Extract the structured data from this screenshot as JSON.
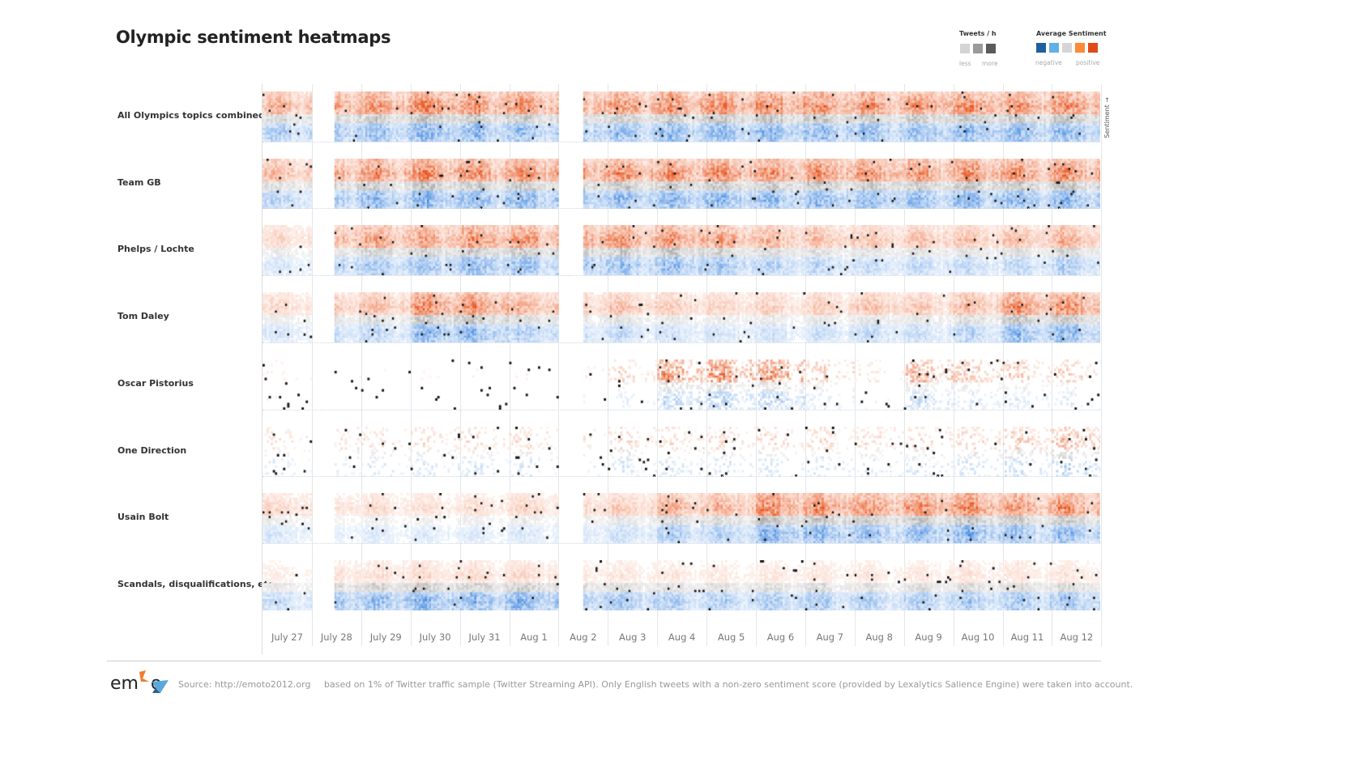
{
  "title": "Olympic sentiment heatmaps",
  "legend": {
    "tweets": {
      "title": "Tweets / h",
      "less": "less",
      "more": "more",
      "colors": [
        "#d4d4d4",
        "#9a9a9a",
        "#5a5a5a"
      ]
    },
    "sentiment": {
      "title": "Average Sentiment",
      "negative": "negative",
      "positive": "positive",
      "colors": [
        "#1f5fa0",
        "#63b0e2",
        "#d6d6d6",
        "#fc8a36",
        "#e04a16"
      ]
    }
  },
  "axis": {
    "y_label": "Sentiment →"
  },
  "chart_data": {
    "type": "heatmap",
    "x_categories": [
      "July 27",
      "July 28",
      "July 29",
      "July 30",
      "July 31",
      "Aug 1",
      "Aug 2",
      "Aug 3",
      "Aug 4",
      "Aug 5",
      "Aug 6",
      "Aug 7",
      "Aug 8",
      "Aug 9",
      "Aug 10",
      "Aug 11",
      "Aug 12"
    ],
    "x_resolution": "hourly",
    "y": "sentiment (positive at top, negative at bottom)",
    "color": "average sentiment (blue negative to orange positive), darkness = tweets / h",
    "rows": [
      {
        "name": "All Olympics topics combined",
        "activity": [
          0.6,
          0.8,
          0.8,
          0.9,
          0.85,
          0.8,
          0.8,
          0.8,
          0.85,
          0.85,
          0.9,
          0.85,
          0.8,
          0.8,
          0.85,
          0.8,
          0.85
        ]
      },
      {
        "name": "Team GB",
        "activity": [
          0.5,
          0.8,
          0.8,
          0.9,
          0.85,
          0.85,
          0.9,
          0.85,
          0.85,
          0.9,
          0.85,
          0.85,
          0.8,
          0.8,
          0.85,
          0.8,
          0.9
        ]
      },
      {
        "name": "Phelps / Lochte",
        "activity": [
          0.3,
          0.7,
          0.7,
          0.7,
          0.85,
          0.8,
          0.9,
          0.75,
          0.8,
          0.7,
          0.55,
          0.5,
          0.45,
          0.45,
          0.45,
          0.5,
          0.6
        ]
      },
      {
        "name": "Tom Daley",
        "activity": [
          0.3,
          0.5,
          0.5,
          0.85,
          0.8,
          0.6,
          0.5,
          0.45,
          0.4,
          0.35,
          0.35,
          0.4,
          0.45,
          0.4,
          0.55,
          0.8,
          0.85
        ]
      },
      {
        "name": "Oscar Pistorius",
        "activity": [
          0.15,
          0.1,
          0.1,
          0.1,
          0.1,
          0.1,
          0.2,
          0.3,
          0.8,
          0.8,
          0.8,
          0.4,
          0.2,
          0.6,
          0.45,
          0.4,
          0.35
        ]
      },
      {
        "name": "One Direction",
        "activity": [
          0.25,
          0.3,
          0.3,
          0.3,
          0.3,
          0.3,
          0.25,
          0.3,
          0.3,
          0.3,
          0.3,
          0.3,
          0.3,
          0.3,
          0.35,
          0.4,
          0.5
        ]
      },
      {
        "name": "Usain Bolt",
        "activity": [
          0.3,
          0.25,
          0.25,
          0.25,
          0.25,
          0.3,
          0.35,
          0.4,
          0.6,
          0.6,
          0.9,
          0.85,
          0.8,
          0.8,
          0.9,
          0.75,
          0.85
        ]
      },
      {
        "name": "Scandals, disqualifications, etc.",
        "activity": [
          0.4,
          0.75,
          0.7,
          0.75,
          0.75,
          0.8,
          0.6,
          0.55,
          0.5,
          0.5,
          0.5,
          0.5,
          0.5,
          0.5,
          0.55,
          0.6,
          0.6
        ]
      }
    ],
    "missing_data": [
      "July 28 (early hours)",
      "Aug 2 (first half)"
    ]
  },
  "footer": {
    "logo": "emoto",
    "source": "Source: http://emoto2012.org",
    "note": "based on 1% of Twitter traffic sample (Twitter Streaming API). Only English tweets with a non-zero sentiment score (provided by Lexalytics Salience Engine) were taken into account."
  }
}
